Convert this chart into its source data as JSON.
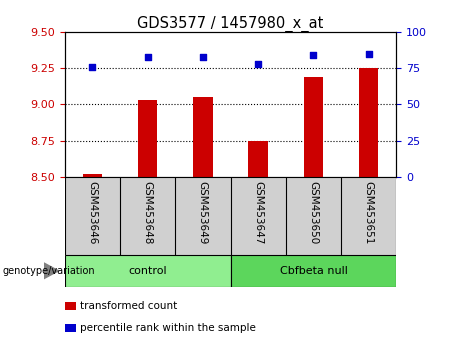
{
  "title": "GDS3577 / 1457980_x_at",
  "samples": [
    "GSM453646",
    "GSM453648",
    "GSM453649",
    "GSM453647",
    "GSM453650",
    "GSM453651"
  ],
  "transformed_counts": [
    8.52,
    9.03,
    9.05,
    8.75,
    9.19,
    9.25
  ],
  "percentile_ranks": [
    76,
    83,
    83,
    78,
    84,
    85
  ],
  "ylim_left": [
    8.5,
    9.5
  ],
  "ylim_right": [
    0,
    100
  ],
  "yticks_left": [
    8.5,
    8.75,
    9.0,
    9.25,
    9.5
  ],
  "yticks_right": [
    0,
    25,
    50,
    75,
    100
  ],
  "hlines": [
    8.75,
    9.0,
    9.25
  ],
  "bar_color": "#cc0000",
  "dot_color": "#0000cc",
  "bar_width": 0.35,
  "groups": [
    {
      "label": "control",
      "indices": [
        0,
        1,
        2
      ],
      "color": "#90ee90"
    },
    {
      "label": "Cbfbeta null",
      "indices": [
        3,
        4,
        5
      ],
      "color": "#5cd65c"
    }
  ],
  "group_label_prefix": "genotype/variation",
  "legend_items": [
    {
      "label": "transformed count",
      "color": "#cc0000"
    },
    {
      "label": "percentile rank within the sample",
      "color": "#0000cc"
    }
  ],
  "tick_label_color_left": "#cc0000",
  "tick_label_color_right": "#0000cc",
  "sample_box_color": "#d0d0d0",
  "sample_box_border": "#000000",
  "plot_border_color": "#000000"
}
